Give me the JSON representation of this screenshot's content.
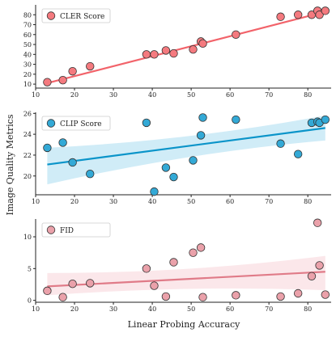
{
  "figure": {
    "ylabel": "Image Quality Metrics",
    "xlabel": "Linear Probing Accuracy"
  },
  "chart_data": [
    {
      "type": "scatter",
      "fit": "linear regression line with confidence band",
      "legend": "CLER Score",
      "legend_position": "top-left",
      "grid": false,
      "color": "#f2636a",
      "marker_color": "#f47a7f",
      "xlim": [
        10,
        86
      ],
      "ylim": [
        6,
        90
      ],
      "xticks": [
        10,
        20,
        30,
        40,
        50,
        60,
        70,
        80
      ],
      "yticks": [
        10,
        20,
        30,
        40,
        50,
        60,
        70,
        80
      ],
      "x": [
        13,
        17,
        19.5,
        24,
        38.5,
        40.5,
        43.5,
        45.5,
        50.5,
        52.5,
        53,
        61.5,
        73,
        77.5,
        81,
        82.5,
        83,
        84.5
      ],
      "y": [
        12,
        14,
        23,
        28,
        40,
        40,
        44,
        41,
        45,
        53,
        51,
        60,
        78,
        80,
        80,
        84,
        80,
        84
      ],
      "fit_line": {
        "x0": 13,
        "y0": 11,
        "x1": 84.5,
        "y1": 83
      }
    },
    {
      "type": "scatter",
      "fit": "linear regression line with confidence band",
      "legend": "CLIP Score",
      "legend_position": "top-left",
      "grid": false,
      "color": "#0a94c9",
      "marker_color": "#33a9d6",
      "band_color": "#aadcf0",
      "xlim": [
        10,
        86
      ],
      "ylim": [
        18.2,
        26.1
      ],
      "xticks": [
        10,
        20,
        30,
        40,
        50,
        60,
        70,
        80
      ],
      "yticks": [
        20,
        22,
        24,
        26
      ],
      "x": [
        13,
        17,
        19.5,
        24,
        38.5,
        40.5,
        43.5,
        45.5,
        50.5,
        52.5,
        53,
        61.5,
        73,
        77.5,
        81,
        82.5,
        83,
        84.5
      ],
      "y": [
        22.7,
        23.2,
        21.3,
        20.2,
        25.1,
        18.5,
        20.8,
        19.9,
        21.5,
        23.9,
        25.6,
        25.4,
        23.1,
        22.1,
        25.1,
        25.2,
        25.1,
        25.4
      ],
      "fit_line": {
        "x0": 13,
        "y0": 21.1,
        "x1": 84.5,
        "y1": 24.6
      },
      "band_lower": {
        "x0": 13,
        "y0": 19.2,
        "xm": 50,
        "ym": 22.3,
        "x1": 84.5,
        "y1": 23.4
      },
      "band_upper": {
        "x0": 13,
        "y0": 22.7,
        "xm": 50,
        "ym": 23.4,
        "x1": 84.5,
        "y1": 25.8
      }
    },
    {
      "type": "scatter",
      "fit": "linear regression line with confidence band",
      "legend": "FID",
      "legend_position": "top-left",
      "grid": false,
      "color": "#e07b88",
      "marker_color": "#eaa1aa",
      "band_color": "#f7d4d9",
      "xlim": [
        10,
        86
      ],
      "ylim": [
        -0.3,
        12.8
      ],
      "xticks": [
        10,
        20,
        30,
        40,
        50,
        60,
        70,
        80
      ],
      "yticks": [
        0,
        5,
        10
      ],
      "x": [
        13,
        17,
        19.5,
        24,
        38.5,
        40.5,
        43.5,
        45.5,
        50.5,
        52.5,
        53,
        61.5,
        73,
        77.5,
        81,
        82.5,
        83,
        84.5
      ],
      "y": [
        1.5,
        0.5,
        2.6,
        2.7,
        5.0,
        2.3,
        0.6,
        6.0,
        7.5,
        8.3,
        0.5,
        0.8,
        0.6,
        1.1,
        3.8,
        12.2,
        5.5,
        0.9
      ],
      "fit_line": {
        "x0": 13,
        "y0": 2.2,
        "x1": 84.5,
        "y1": 4.5
      },
      "band_lower": {
        "x0": 13,
        "y0": 0.8,
        "xm": 50,
        "ym": 2.4,
        "x1": 84.5,
        "y1": 1.6
      },
      "band_upper": {
        "x0": 13,
        "y0": 4.3,
        "xm": 50,
        "ym": 4.3,
        "x1": 84.5,
        "y1": 7.0
      }
    }
  ]
}
